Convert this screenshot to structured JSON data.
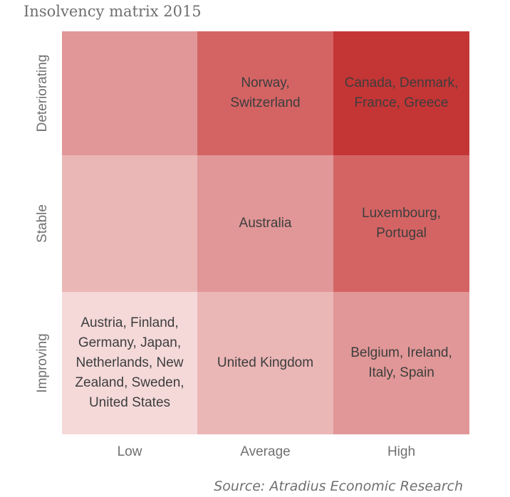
{
  "chart_data": {
    "type": "heatmap",
    "title": "Insolvency matrix 2015",
    "x_categories": [
      "Low",
      "Average",
      "High"
    ],
    "y_categories": [
      "Deteriorating",
      "Stable",
      "Improving"
    ],
    "level_colors": [
      "#f5d9d9",
      "#ebb6b6",
      "#e19797",
      "#d46464",
      "#c43535"
    ],
    "cells": [
      [
        {
          "level": 3,
          "text": ""
        },
        {
          "level": 4,
          "text": "Norway,\nSwitzerland"
        },
        {
          "level": 5,
          "text": "Canada, Denmark,\nFrance, Greece"
        }
      ],
      [
        {
          "level": 2,
          "text": ""
        },
        {
          "level": 3,
          "text": "Australia"
        },
        {
          "level": 4,
          "text": "Luxembourg,\nPortugal"
        }
      ],
      [
        {
          "level": 1,
          "text": "Austria, Finland,\nGermany, Japan,\nNetherlands, New\nZealand, Sweden,\nUnited States"
        },
        {
          "level": 2,
          "text": "United Kingdom"
        },
        {
          "level": 3,
          "text": "Belgium, Ireland,\nItaly, Spain"
        }
      ]
    ],
    "source": "Source: Atradius Economic Research"
  }
}
